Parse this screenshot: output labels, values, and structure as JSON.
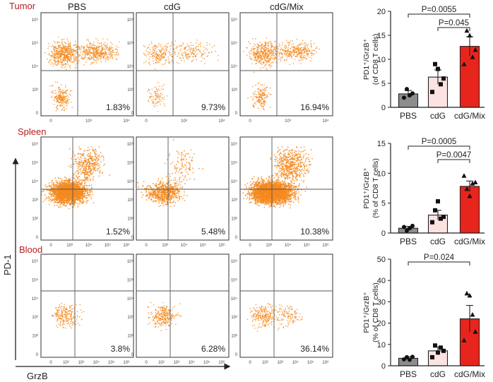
{
  "figure": {
    "y_axis_label": "PD-1",
    "x_axis_label": "GrzB",
    "group_headers": [
      "PBS",
      "cdG",
      "cdG/Mix"
    ],
    "colors": {
      "flow_dot": "#f5891f",
      "tissue_label": "#b41e1e",
      "bar_pbs": "#8c8c8c",
      "bar_cdg": "#fbe3e1",
      "bar_mix": "#e8251c",
      "axis": "#222222"
    }
  },
  "chart_data": [
    {
      "type": "flow-cytometry-grid",
      "rows": [
        {
          "tissue": "Tumor",
          "y_ticks": [
            "0",
            "10³",
            "10⁴",
            "10⁵",
            "10⁶"
          ],
          "x_ticks": [
            "0",
            "10³",
            "10⁴"
          ],
          "panels": [
            {
              "group": "PBS",
              "quadrant_percent": "1.83%",
              "events": 1100
            },
            {
              "group": "cdG",
              "quadrant_percent": "9.73%",
              "events": 420
            },
            {
              "group": "cdG/Mix",
              "quadrant_percent": "16.94%",
              "events": 850
            }
          ]
        },
        {
          "tissue": "Spleen",
          "y_ticks": [
            "0",
            "10²",
            "10³",
            "10⁴",
            "10⁵",
            "10⁶"
          ],
          "x_ticks": [
            "0",
            "10³",
            "10⁴",
            "10⁵",
            "10⁶"
          ],
          "panels": [
            {
              "group": "PBS",
              "quadrant_percent": "1.52%",
              "events": 2400
            },
            {
              "group": "cdG",
              "quadrant_percent": "5.48%",
              "events": 700
            },
            {
              "group": "cdG/Mix",
              "quadrant_percent": "10.38%",
              "events": 3200
            }
          ]
        },
        {
          "tissue": "Blood",
          "y_ticks": [
            "0",
            "10²",
            "10³",
            "10⁴",
            "10⁵",
            "10⁶"
          ],
          "x_ticks": [
            "0",
            "10²",
            "10³",
            "10⁴",
            "10⁵",
            "10⁶"
          ],
          "panels": [
            {
              "group": "PBS",
              "quadrant_percent": "3.8%",
              "events": 220
            },
            {
              "group": "cdG",
              "quadrant_percent": "6.28%",
              "events": 260
            },
            {
              "group": "cdG/Mix",
              "quadrant_percent": "36.14%",
              "events": 330
            }
          ]
        }
      ]
    },
    {
      "type": "bar",
      "tissue": "Tumor",
      "title": "",
      "categories": [
        "PBS",
        "cdG",
        "cdG/Mix"
      ],
      "values": [
        2.8,
        6.3,
        12.7
      ],
      "errors": [
        0.7,
        1.5,
        2.0
      ],
      "points": [
        [
          2.0,
          3.8,
          2.5,
          2.9
        ],
        [
          3.2,
          9.0,
          8.0,
          4.8,
          6.0
        ],
        [
          9.0,
          16.0,
          15.0,
          10.5,
          12.0
        ]
      ],
      "ylabel": "PD1⁺/GrzB⁺ (of CD8 T cells)",
      "ylim": [
        0,
        20
      ],
      "yticks": [
        "0",
        "5",
        "10",
        "15",
        "20"
      ],
      "comparisons": [
        {
          "from": "PBS",
          "to": "cdG/Mix",
          "label": "P=0.0055"
        },
        {
          "from": "cdG",
          "to": "cdG/Mix",
          "label": "P=0.045"
        }
      ]
    },
    {
      "type": "bar",
      "tissue": "Spleen",
      "title": "",
      "categories": [
        "PBS",
        "cdG",
        "cdG/Mix"
      ],
      "values": [
        0.8,
        3.0,
        7.8
      ],
      "errors": [
        0.3,
        0.8,
        0.9
      ],
      "points": [
        [
          1.0,
          0.4,
          0.8,
          1.2
        ],
        [
          1.8,
          3.8,
          5.3,
          2.4,
          2.7
        ],
        [
          9.6,
          7.4,
          6.2,
          8.3,
          8.5
        ]
      ],
      "ylabel": "PD1⁺/GrzB⁺ (% of CD8 T cells)",
      "ylim": [
        0,
        15
      ],
      "yticks": [
        "0",
        "5",
        "10",
        "15"
      ],
      "comparisons": [
        {
          "from": "PBS",
          "to": "cdG/Mix",
          "label": "P=0.0005"
        },
        {
          "from": "cdG",
          "to": "cdG/Mix",
          "label": "P=0.0047"
        }
      ]
    },
    {
      "type": "bar",
      "tissue": "Blood",
      "title": "",
      "categories": [
        "PBS",
        "cdG",
        "cdG/Mix"
      ],
      "values": [
        3.5,
        7.0,
        22.0
      ],
      "errors": [
        0.7,
        1.8,
        6.3
      ],
      "points": [
        [
          3.0,
          4.0,
          2.8,
          4.2
        ],
        [
          4.0,
          9.5,
          6.2,
          8.5,
          7.0
        ],
        [
          12.0,
          34.0,
          33.0,
          24.0,
          16.0
        ]
      ],
      "ylabel": "PD1⁺/GrzB⁺ (% of CD8 T cells)",
      "ylim": [
        0,
        50
      ],
      "yticks": [
        "0",
        "10",
        "20",
        "30",
        "40",
        "50"
      ],
      "comparisons": [
        {
          "from": "PBS",
          "to": "cdG/Mix",
          "label": "P=0.024"
        }
      ]
    }
  ]
}
